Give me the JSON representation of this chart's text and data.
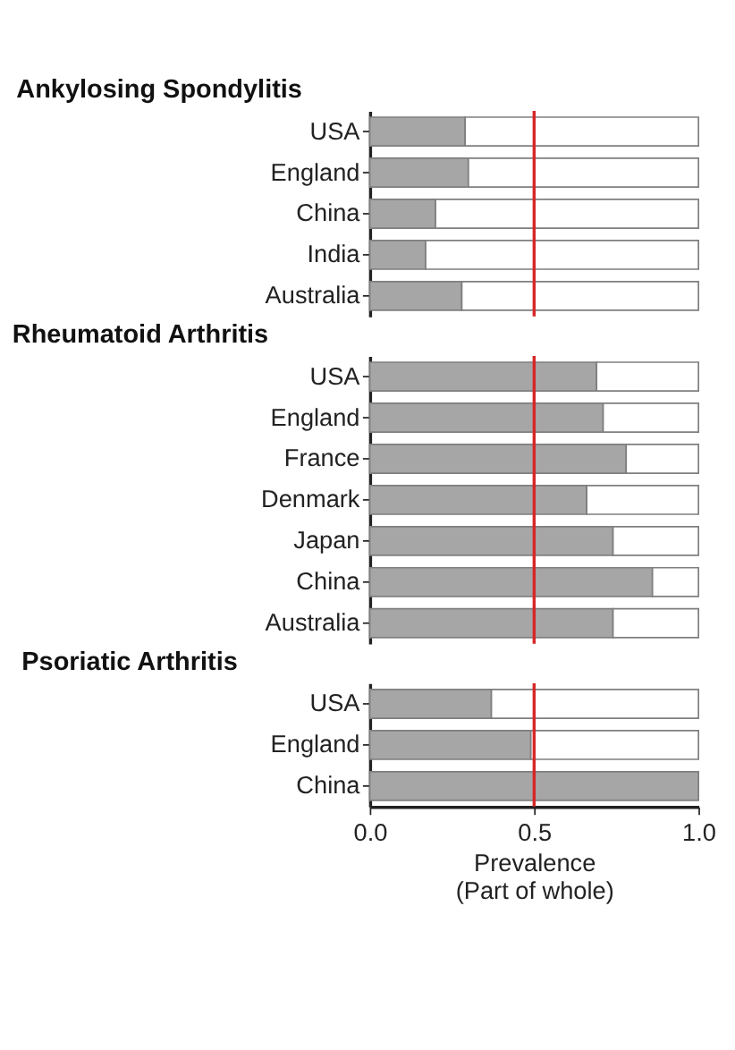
{
  "chart_data": [
    {
      "type": "bar",
      "orientation": "horizontal",
      "stacked": true,
      "title": "Ankylosing Spondylitis",
      "categories": [
        "USA",
        "England",
        "China",
        "India",
        "Australia"
      ],
      "series": [
        {
          "color": "#a6a6a6",
          "values": [
            0.29,
            0.3,
            0.2,
            0.17,
            0.28
          ]
        },
        {
          "color": "#ffffff",
          "values": [
            0.71,
            0.7,
            0.8,
            0.83,
            0.72
          ]
        }
      ],
      "xlim": [
        0,
        1
      ],
      "tick_labels": "y",
      "grid": false,
      "legend": false,
      "ref_lines": [
        {
          "axis": "x",
          "value": 0.5,
          "color": "#d62728"
        }
      ]
    },
    {
      "type": "bar",
      "orientation": "horizontal",
      "stacked": true,
      "title": "Rheumatoid Arthritis",
      "categories": [
        "USA",
        "England",
        "France",
        "Denmark",
        "Japan",
        "China",
        "Australia"
      ],
      "series": [
        {
          "color": "#a6a6a6",
          "values": [
            0.69,
            0.71,
            0.78,
            0.66,
            0.74,
            0.86,
            0.74
          ]
        },
        {
          "color": "#ffffff",
          "values": [
            0.31,
            0.29,
            0.22,
            0.34,
            0.26,
            0.14,
            0.26
          ]
        }
      ],
      "xlim": [
        0,
        1
      ],
      "tick_labels": "y",
      "grid": false,
      "legend": false,
      "ref_lines": [
        {
          "axis": "x",
          "value": 0.5,
          "color": "#d62728"
        }
      ]
    },
    {
      "type": "bar",
      "orientation": "horizontal",
      "stacked": true,
      "title": "Psoriatic Arthritis",
      "categories": [
        "USA",
        "England",
        "China"
      ],
      "series": [
        {
          "color": "#a6a6a6",
          "values": [
            0.37,
            0.49,
            1.0
          ]
        },
        {
          "color": "#ffffff",
          "values": [
            0.63,
            0.51,
            null
          ]
        }
      ],
      "xlim": [
        0,
        1
      ],
      "xticks": [
        {
          "value": 0,
          "label": "0.0"
        },
        {
          "value": 0.5,
          "label": "0.5"
        },
        {
          "value": 1,
          "label": "1.0"
        }
      ],
      "xlabel": "Prevalence\n(Part of whole)",
      "grid": false,
      "legend": false,
      "ref_lines": [
        {
          "axis": "x",
          "value": 0.5,
          "color": "#d62728"
        }
      ]
    }
  ]
}
